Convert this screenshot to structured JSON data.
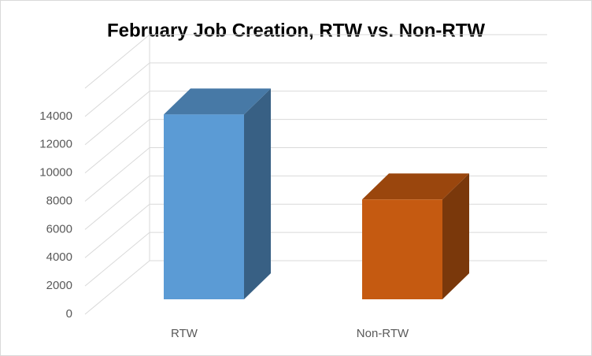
{
  "chart_data": {
    "type": "bar3d",
    "title": "February Job Creation, RTW vs. Non-RTW",
    "categories": [
      "RTW",
      "Non-RTW"
    ],
    "series": [
      {
        "values": [
          13700,
          7400
        ],
        "colors": [
          "#5b9bd5",
          "#c55a11"
        ]
      }
    ],
    "ylim": [
      0,
      16000
    ],
    "yticks": [
      0,
      2000,
      4000,
      6000,
      8000,
      10000,
      12000,
      14000
    ],
    "grid": true
  }
}
